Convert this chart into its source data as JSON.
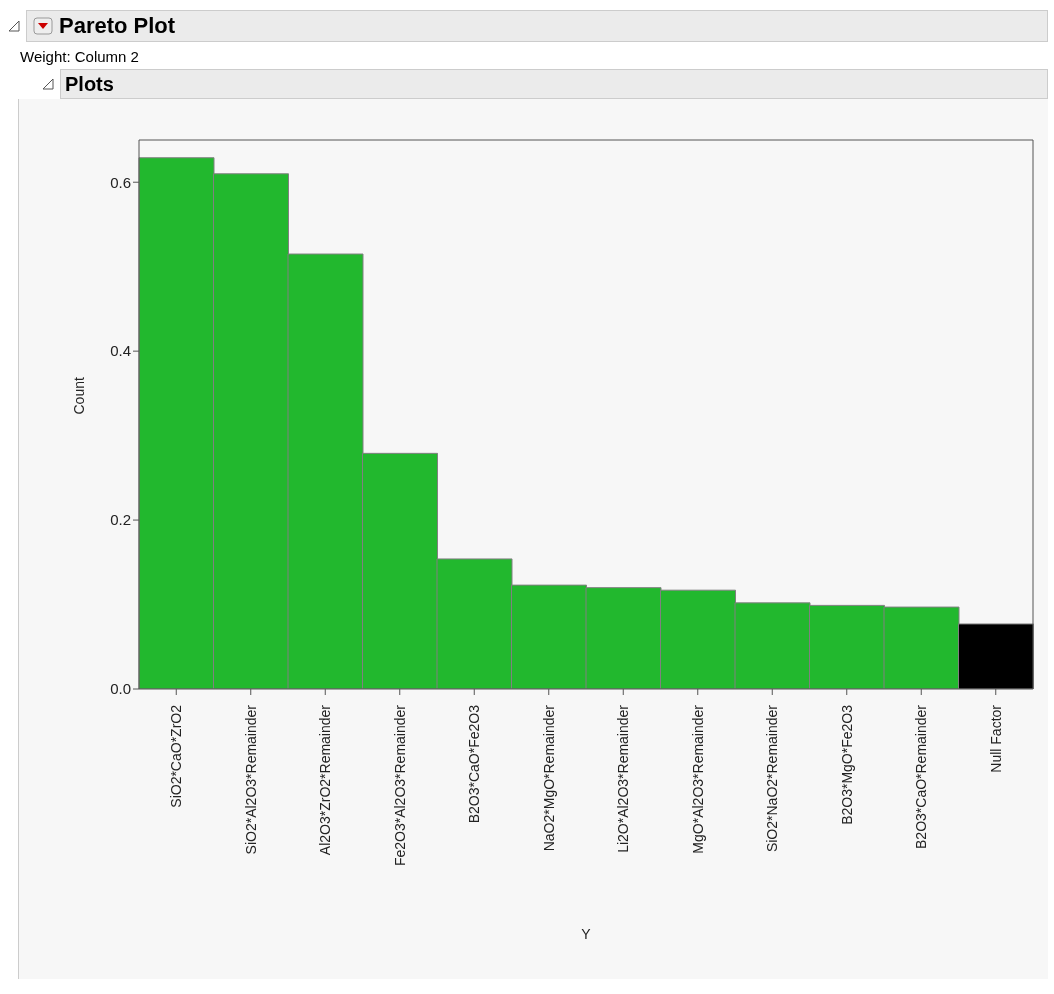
{
  "chart_data": {
    "type": "bar",
    "title": "Pareto Plot",
    "subtitle": "Weight: Column 2",
    "annotations": [
      "Plots"
    ],
    "xlabel": "Y",
    "ylabel": "Count",
    "categories": [
      "SiO2*CaO*ZrO2",
      "SiO2*Al2O3*Remainder",
      "Al2O3*ZrO2*Remainder",
      "Fe2O3*Al2O3*Remainder",
      "B2O3*CaO*Fe2O3",
      "NaO2*MgO*Remainder",
      "Li2O*Al2O3*Remainder",
      "MgO*Al2O3*Remainder",
      "SiO2*NaO2*Remainder",
      "B2O3*MgO*Fe2O3",
      "B2O3*CaO*Remainder",
      "Null Factor"
    ],
    "values": [
      0.629,
      0.61,
      0.515,
      0.279,
      0.154,
      0.123,
      0.12,
      0.117,
      0.102,
      0.099,
      0.097,
      0.077
    ],
    "colors": [
      "#22b82e",
      "#22b82e",
      "#22b82e",
      "#22b82e",
      "#22b82e",
      "#22b82e",
      "#22b82e",
      "#22b82e",
      "#22b82e",
      "#22b82e",
      "#22b82e",
      "#000000"
    ],
    "ylim": [
      0,
      0.65
    ],
    "yticks": [
      {
        "value": 0,
        "label": "0.0"
      },
      {
        "value": 0.2,
        "label": "0.2"
      },
      {
        "value": 0.4,
        "label": "0.4"
      },
      {
        "value": 0.6,
        "label": "0.6"
      }
    ],
    "grid": false,
    "legend": false
  }
}
